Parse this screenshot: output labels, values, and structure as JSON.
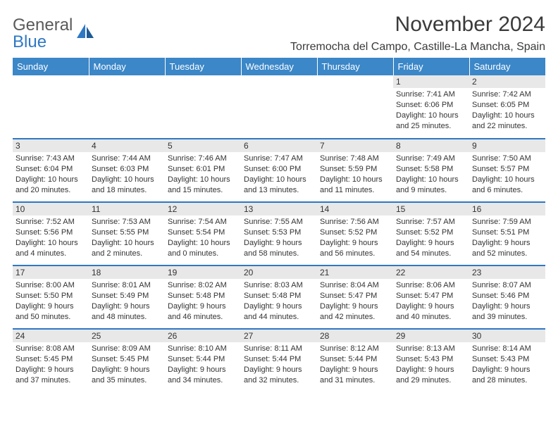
{
  "brand": {
    "line1": "General",
    "line2": "Blue"
  },
  "title": "November 2024",
  "location": "Torremocha del Campo, Castille-La Mancha, Spain",
  "colors": {
    "header_bg": "#3b87c8",
    "header_text": "#ffffff",
    "daynum_bg": "#e8e8e8",
    "cell_border": "#2f78c4",
    "logo_gray": "#5a5a5a",
    "logo_blue": "#2f78c4"
  },
  "weekdays": [
    "Sunday",
    "Monday",
    "Tuesday",
    "Wednesday",
    "Thursday",
    "Friday",
    "Saturday"
  ],
  "rows": [
    [
      {
        "n": "",
        "sr": "",
        "ss": "",
        "dl": ""
      },
      {
        "n": "",
        "sr": "",
        "ss": "",
        "dl": ""
      },
      {
        "n": "",
        "sr": "",
        "ss": "",
        "dl": ""
      },
      {
        "n": "",
        "sr": "",
        "ss": "",
        "dl": ""
      },
      {
        "n": "",
        "sr": "",
        "ss": "",
        "dl": ""
      },
      {
        "n": "1",
        "sr": "Sunrise: 7:41 AM",
        "ss": "Sunset: 6:06 PM",
        "dl": "Daylight: 10 hours and 25 minutes."
      },
      {
        "n": "2",
        "sr": "Sunrise: 7:42 AM",
        "ss": "Sunset: 6:05 PM",
        "dl": "Daylight: 10 hours and 22 minutes."
      }
    ],
    [
      {
        "n": "3",
        "sr": "Sunrise: 7:43 AM",
        "ss": "Sunset: 6:04 PM",
        "dl": "Daylight: 10 hours and 20 minutes."
      },
      {
        "n": "4",
        "sr": "Sunrise: 7:44 AM",
        "ss": "Sunset: 6:03 PM",
        "dl": "Daylight: 10 hours and 18 minutes."
      },
      {
        "n": "5",
        "sr": "Sunrise: 7:46 AM",
        "ss": "Sunset: 6:01 PM",
        "dl": "Daylight: 10 hours and 15 minutes."
      },
      {
        "n": "6",
        "sr": "Sunrise: 7:47 AM",
        "ss": "Sunset: 6:00 PM",
        "dl": "Daylight: 10 hours and 13 minutes."
      },
      {
        "n": "7",
        "sr": "Sunrise: 7:48 AM",
        "ss": "Sunset: 5:59 PM",
        "dl": "Daylight: 10 hours and 11 minutes."
      },
      {
        "n": "8",
        "sr": "Sunrise: 7:49 AM",
        "ss": "Sunset: 5:58 PM",
        "dl": "Daylight: 10 hours and 9 minutes."
      },
      {
        "n": "9",
        "sr": "Sunrise: 7:50 AM",
        "ss": "Sunset: 5:57 PM",
        "dl": "Daylight: 10 hours and 6 minutes."
      }
    ],
    [
      {
        "n": "10",
        "sr": "Sunrise: 7:52 AM",
        "ss": "Sunset: 5:56 PM",
        "dl": "Daylight: 10 hours and 4 minutes."
      },
      {
        "n": "11",
        "sr": "Sunrise: 7:53 AM",
        "ss": "Sunset: 5:55 PM",
        "dl": "Daylight: 10 hours and 2 minutes."
      },
      {
        "n": "12",
        "sr": "Sunrise: 7:54 AM",
        "ss": "Sunset: 5:54 PM",
        "dl": "Daylight: 10 hours and 0 minutes."
      },
      {
        "n": "13",
        "sr": "Sunrise: 7:55 AM",
        "ss": "Sunset: 5:53 PM",
        "dl": "Daylight: 9 hours and 58 minutes."
      },
      {
        "n": "14",
        "sr": "Sunrise: 7:56 AM",
        "ss": "Sunset: 5:52 PM",
        "dl": "Daylight: 9 hours and 56 minutes."
      },
      {
        "n": "15",
        "sr": "Sunrise: 7:57 AM",
        "ss": "Sunset: 5:52 PM",
        "dl": "Daylight: 9 hours and 54 minutes."
      },
      {
        "n": "16",
        "sr": "Sunrise: 7:59 AM",
        "ss": "Sunset: 5:51 PM",
        "dl": "Daylight: 9 hours and 52 minutes."
      }
    ],
    [
      {
        "n": "17",
        "sr": "Sunrise: 8:00 AM",
        "ss": "Sunset: 5:50 PM",
        "dl": "Daylight: 9 hours and 50 minutes."
      },
      {
        "n": "18",
        "sr": "Sunrise: 8:01 AM",
        "ss": "Sunset: 5:49 PM",
        "dl": "Daylight: 9 hours and 48 minutes."
      },
      {
        "n": "19",
        "sr": "Sunrise: 8:02 AM",
        "ss": "Sunset: 5:48 PM",
        "dl": "Daylight: 9 hours and 46 minutes."
      },
      {
        "n": "20",
        "sr": "Sunrise: 8:03 AM",
        "ss": "Sunset: 5:48 PM",
        "dl": "Daylight: 9 hours and 44 minutes."
      },
      {
        "n": "21",
        "sr": "Sunrise: 8:04 AM",
        "ss": "Sunset: 5:47 PM",
        "dl": "Daylight: 9 hours and 42 minutes."
      },
      {
        "n": "22",
        "sr": "Sunrise: 8:06 AM",
        "ss": "Sunset: 5:47 PM",
        "dl": "Daylight: 9 hours and 40 minutes."
      },
      {
        "n": "23",
        "sr": "Sunrise: 8:07 AM",
        "ss": "Sunset: 5:46 PM",
        "dl": "Daylight: 9 hours and 39 minutes."
      }
    ],
    [
      {
        "n": "24",
        "sr": "Sunrise: 8:08 AM",
        "ss": "Sunset: 5:45 PM",
        "dl": "Daylight: 9 hours and 37 minutes."
      },
      {
        "n": "25",
        "sr": "Sunrise: 8:09 AM",
        "ss": "Sunset: 5:45 PM",
        "dl": "Daylight: 9 hours and 35 minutes."
      },
      {
        "n": "26",
        "sr": "Sunrise: 8:10 AM",
        "ss": "Sunset: 5:44 PM",
        "dl": "Daylight: 9 hours and 34 minutes."
      },
      {
        "n": "27",
        "sr": "Sunrise: 8:11 AM",
        "ss": "Sunset: 5:44 PM",
        "dl": "Daylight: 9 hours and 32 minutes."
      },
      {
        "n": "28",
        "sr": "Sunrise: 8:12 AM",
        "ss": "Sunset: 5:44 PM",
        "dl": "Daylight: 9 hours and 31 minutes."
      },
      {
        "n": "29",
        "sr": "Sunrise: 8:13 AM",
        "ss": "Sunset: 5:43 PM",
        "dl": "Daylight: 9 hours and 29 minutes."
      },
      {
        "n": "30",
        "sr": "Sunrise: 8:14 AM",
        "ss": "Sunset: 5:43 PM",
        "dl": "Daylight: 9 hours and 28 minutes."
      }
    ]
  ]
}
